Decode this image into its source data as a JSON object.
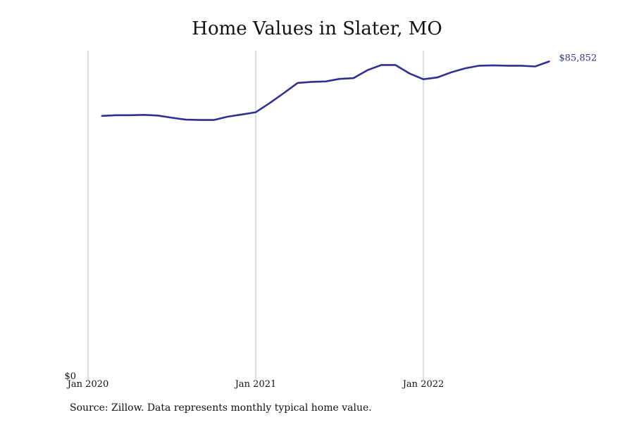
{
  "chart_data": {
    "type": "line",
    "title": "Home Values in Slater, MO",
    "xlabel": "",
    "ylabel": "",
    "x_ticks": [
      "Jan 2020",
      "Jan 2021",
      "Jan 2022"
    ],
    "y_ticks": [
      "$0"
    ],
    "ylim": [
      0,
      89000
    ],
    "grid": "vertical lines at January of each year",
    "series": [
      {
        "color": "#2e3192",
        "points": [
          {
            "x": "2020-02",
            "y": 71000
          },
          {
            "x": "2020-03",
            "y": 71200
          },
          {
            "x": "2020-04",
            "y": 71200
          },
          {
            "x": "2020-05",
            "y": 71300
          },
          {
            "x": "2020-06",
            "y": 71100
          },
          {
            "x": "2020-07",
            "y": 70500
          },
          {
            "x": "2020-08",
            "y": 70000
          },
          {
            "x": "2020-09",
            "y": 69900
          },
          {
            "x": "2020-10",
            "y": 69900
          },
          {
            "x": "2020-11",
            "y": 70800
          },
          {
            "x": "2020-12",
            "y": 71400
          },
          {
            "x": "2021-01",
            "y": 72000
          },
          {
            "x": "2021-02",
            "y": 74500
          },
          {
            "x": "2021-03",
            "y": 77200
          },
          {
            "x": "2021-04",
            "y": 80000
          },
          {
            "x": "2021-05",
            "y": 80300
          },
          {
            "x": "2021-06",
            "y": 80400
          },
          {
            "x": "2021-07",
            "y": 81100
          },
          {
            "x": "2021-08",
            "y": 81300
          },
          {
            "x": "2021-09",
            "y": 83500
          },
          {
            "x": "2021-10",
            "y": 84900
          },
          {
            "x": "2021-11",
            "y": 84900
          },
          {
            "x": "2021-12",
            "y": 82600
          },
          {
            "x": "2022-01",
            "y": 81000
          },
          {
            "x": "2022-02",
            "y": 81500
          },
          {
            "x": "2022-03",
            "y": 82900
          },
          {
            "x": "2022-04",
            "y": 84000
          },
          {
            "x": "2022-05",
            "y": 84700
          },
          {
            "x": "2022-06",
            "y": 84800
          },
          {
            "x": "2022-07",
            "y": 84700
          },
          {
            "x": "2022-08",
            "y": 84700
          },
          {
            "x": "2022-09",
            "y": 84500
          },
          {
            "x": "2022-10",
            "y": 85852
          }
        ]
      }
    ],
    "end_label": "$85,852"
  },
  "source_note": "Source: Zillow. Data represents monthly typical home value."
}
